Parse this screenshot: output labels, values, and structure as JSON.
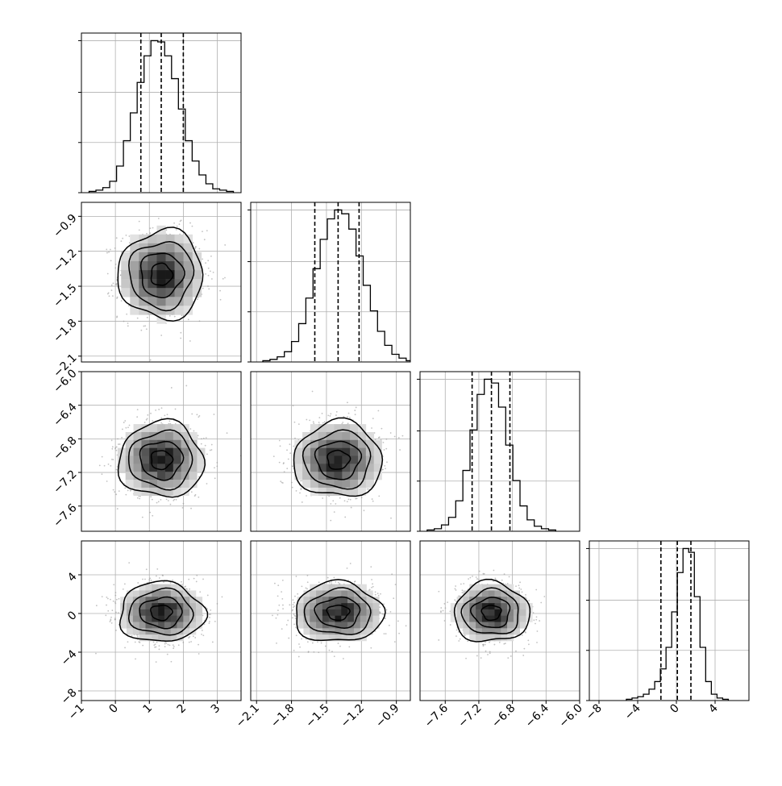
{
  "chart_data": {
    "type": "corner",
    "title": "",
    "parameters": [
      {
        "range": [
          -1,
          3.7
        ],
        "ticks": [
          -1,
          0,
          1,
          2,
          3
        ],
        "tick_labels": [
          "−1",
          "0",
          "1",
          "2",
          "3"
        ],
        "quantiles": [
          0.75,
          1.35,
          2.0
        ],
        "hist_values": [
          1,
          2,
          4,
          9,
          21,
          41,
          63,
          87,
          108,
          120,
          119,
          108,
          90,
          66,
          41,
          25,
          14,
          7,
          3,
          2,
          1
        ]
      },
      {
        "range": [
          -2.15,
          -0.78
        ],
        "ticks": [
          -2.1,
          -1.8,
          -1.5,
          -1.2,
          -0.9
        ],
        "tick_labels": [
          "−2.1",
          "−1.8",
          "−1.5",
          "−1.2",
          "−0.9"
        ],
        "quantiles": [
          -1.6,
          -1.4,
          -1.22
        ],
        "hist_values": [
          1,
          2,
          4,
          8,
          16,
          30,
          50,
          73,
          96,
          112,
          119,
          116,
          104,
          83,
          60,
          40,
          24,
          13,
          6,
          3,
          1
        ]
      },
      {
        "range": [
          -7.9,
          -6.0
        ],
        "ticks": [
          -7.6,
          -7.2,
          -6.8,
          -6.4,
          -6.0
        ],
        "tick_labels": [
          "−7.6",
          "−7.2",
          "−6.8",
          "−6.4",
          "−6.0"
        ],
        "quantiles": [
          -7.28,
          -7.05,
          -6.83
        ],
        "hist_values": [
          1,
          2,
          5,
          11,
          24,
          48,
          80,
          108,
          120,
          117,
          98,
          68,
          40,
          20,
          9,
          4,
          2,
          1
        ]
      },
      {
        "range": [
          -9,
          7.5
        ],
        "ticks": [
          -8,
          -4,
          0,
          4
        ],
        "tick_labels": [
          "−8",
          "−4",
          "0",
          "4"
        ],
        "quantiles": [
          -1.6,
          0.1,
          1.5
        ],
        "hist_values": [
          1,
          2,
          3,
          5,
          9,
          15,
          25,
          42,
          70,
          101,
          120,
          117,
          82,
          42,
          15,
          5,
          2,
          1
        ]
      }
    ],
    "correlations": [
      [],
      [
        0.0
      ],
      [
        0.0,
        0.0
      ],
      [
        0.05,
        0.0,
        0.0
      ]
    ],
    "contour_levels_sigma": [
      0.5,
      1.0,
      1.5,
      2.0
    ],
    "grid": true,
    "colors": {
      "line": "#000000",
      "grid": "#b0b0b0",
      "points": "#9a9a9a",
      "frame": "#000000"
    }
  }
}
